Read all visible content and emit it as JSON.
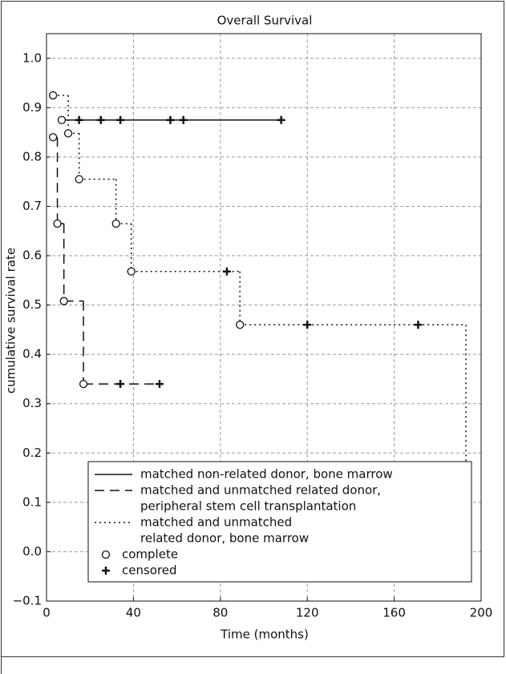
{
  "chart_data": {
    "type": "survival",
    "title": "Overall Survival",
    "x_label": "Time (months)",
    "y_label": "cumulative survival rate",
    "xlim": [
      0,
      200
    ],
    "ylim": [
      -0.1,
      1.05
    ],
    "xticks": [
      0,
      40,
      80,
      120,
      160,
      200
    ],
    "yticks": [
      {
        "value": -0.1,
        "label": "−0.1"
      },
      {
        "value": 0,
        "label": "0.0"
      },
      {
        "value": 0.1,
        "label": "0.1"
      },
      {
        "value": 0.2,
        "label": "0.2"
      },
      {
        "value": 0.3,
        "label": "0.3"
      },
      {
        "value": 0.4,
        "label": "0.4"
      },
      {
        "value": 0.5,
        "label": "0.5"
      },
      {
        "value": 0.6,
        "label": "0.6"
      },
      {
        "value": 0.7,
        "label": "0.7"
      },
      {
        "value": 0.8,
        "label": "0.8"
      },
      {
        "value": 0.9,
        "label": "0.9"
      },
      {
        "value": 1,
        "label": "1.0"
      }
    ],
    "grid": true,
    "series": [
      {
        "name": [
          "matched non-related donor, bone marrow"
        ],
        "color": "#111",
        "dash": "none",
        "x": [
          7
        ],
        "values": [
          0.875
        ],
        "censored_x": [
          15,
          25,
          34,
          57,
          63,
          108
        ],
        "censored_values": [
          0.875,
          0.875,
          0.875,
          0.875,
          0.875,
          0.875
        ]
      },
      {
        "name": [
          "matched and unmatched related donor,",
          "peripheral stem cell transplantation"
        ],
        "color": "#111",
        "dash": "12 7",
        "x": [
          3,
          5,
          8,
          17
        ],
        "values": [
          0.84,
          0.665,
          0.508,
          0.34
        ],
        "censored_x": [
          34,
          52
        ],
        "censored_values": [
          0.34,
          0.34
        ]
      },
      {
        "name": [
          "matched and unmatched",
          "related donor, bone marrow"
        ],
        "color": "#111",
        "dash": "2 4",
        "x": [
          3,
          10,
          15,
          32,
          39,
          89,
          193
        ],
        "values": [
          0.925,
          0.848,
          0.755,
          0.665,
          0.568,
          0.46,
          0.008
        ],
        "censored_x": [
          83,
          120,
          171
        ],
        "censored_values": [
          0.568,
          0.46,
          0.46
        ]
      }
    ],
    "marker_legend": {
      "complete": "complete",
      "censored": "censored"
    }
  }
}
